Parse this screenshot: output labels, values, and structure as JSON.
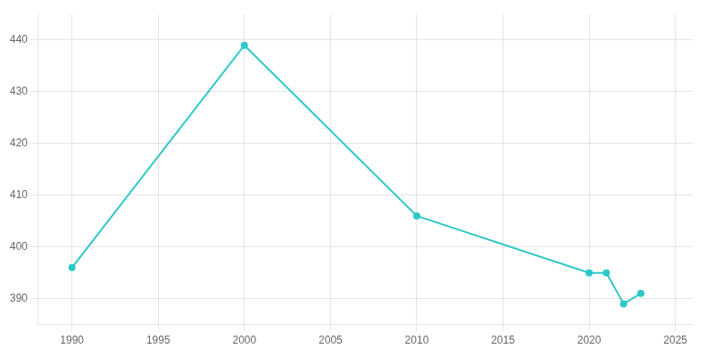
{
  "chart_data": {
    "type": "line",
    "x": [
      1990,
      2000,
      2010,
      2020,
      2021,
      2022,
      2023
    ],
    "values": [
      396,
      439,
      406,
      395,
      395,
      389,
      391
    ],
    "color": "#2ec8c8",
    "marker": "circle",
    "xlim": [
      1988,
      2026
    ],
    "ylim": [
      385,
      445
    ],
    "xticks": [
      1990,
      1995,
      2000,
      2005,
      2010,
      2015,
      2020,
      2025
    ],
    "yticks": [
      390,
      400,
      410,
      420,
      430,
      440
    ],
    "grid": true
  }
}
